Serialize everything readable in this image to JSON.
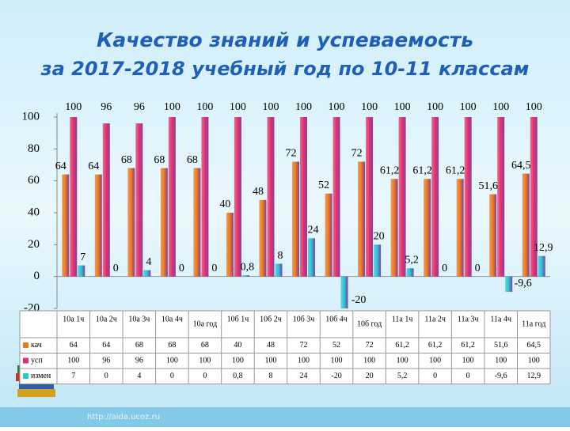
{
  "chart_data": {
    "type": "bar",
    "title": "Качество знаний и успеваемость",
    "subtitle": "за 2017-2018 учебный год по 10-11 классам",
    "footer": "http://aida.ucoz.ru",
    "categories": [
      "10а 1ч",
      "10а 2ч",
      "10а 3ч",
      "10а 4ч",
      "10а год",
      "10б 1ч",
      "10б 2ч",
      "10б 3ч",
      "10б 4ч",
      "10б год",
      "11а 1ч",
      "11а 2ч",
      "11а 3ч",
      "11а 4ч",
      "11а год"
    ],
    "series": [
      {
        "name": "кач",
        "color": "#f07818",
        "values": [
          64,
          64,
          68,
          68,
          68,
          40,
          48,
          72,
          52,
          72,
          61.2,
          61.2,
          61.2,
          51.6,
          64.5
        ],
        "value_labels": [
          "64",
          "64",
          "68",
          "68",
          "68",
          "40",
          "48",
          "72",
          "52",
          "72",
          "61,2",
          "61,2",
          "61,2",
          "51,6",
          "64,5"
        ]
      },
      {
        "name": "усп",
        "color": "#e8306a",
        "values": [
          100,
          96,
          96,
          100,
          100,
          100,
          100,
          100,
          100,
          100,
          100,
          100,
          100,
          100,
          100
        ],
        "value_labels": [
          "100",
          "96",
          "96",
          "100",
          "100",
          "100",
          "100",
          "100",
          "100",
          "100",
          "100",
          "100",
          "100",
          "100",
          "100"
        ]
      },
      {
        "name": "измен",
        "color": "#28c4d8",
        "values": [
          7,
          0,
          4,
          0,
          0,
          0.8,
          8,
          24,
          -20,
          20,
          5.2,
          0,
          0,
          -9.6,
          12.9
        ],
        "value_labels": [
          "7",
          "0",
          "4",
          "0",
          "0",
          "0,8",
          "8",
          "24",
          "-20",
          "20",
          "5,2",
          "0",
          "0",
          "-9,6",
          "12,9"
        ]
      }
    ],
    "ylim": [
      -20,
      100
    ],
    "yticks": [
      -20,
      0,
      20,
      40,
      60,
      80,
      100
    ],
    "grid": false
  }
}
